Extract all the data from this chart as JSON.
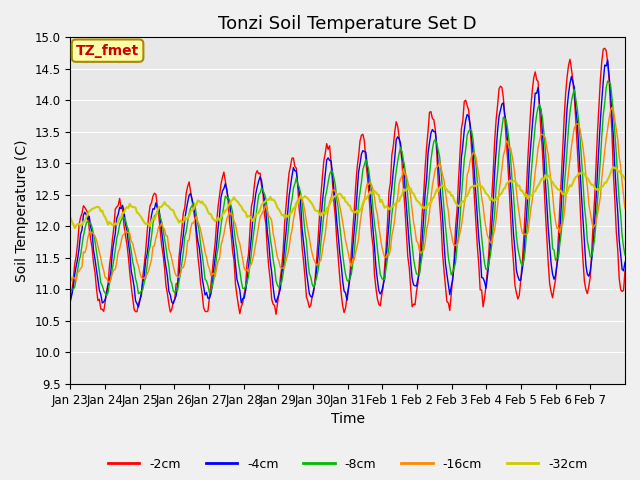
{
  "title": "Tonzi Soil Temperature Set D",
  "xlabel": "Time",
  "ylabel": "Soil Temperature (C)",
  "ylim": [
    9.5,
    15.0
  ],
  "yticks": [
    9.5,
    10.0,
    10.5,
    11.0,
    11.5,
    12.0,
    12.5,
    13.0,
    13.5,
    14.0,
    14.5,
    15.0
  ],
  "xtick_labels": [
    "Jan 23",
    "Jan 24",
    "Jan 25",
    "Jan 26",
    "Jan 27",
    "Jan 28",
    "Jan 29",
    "Jan 30",
    "Jan 31",
    "Feb 1",
    "Feb 2",
    "Feb 3",
    "Feb 4",
    "Feb 5",
    "Feb 6",
    "Feb 7"
  ],
  "series_colors": [
    "#ff0000",
    "#0000ff",
    "#00bb00",
    "#ff8800",
    "#cccc00"
  ],
  "series_labels": [
    "-2cm",
    "-4cm",
    "-8cm",
    "-16cm",
    "-32cm"
  ],
  "annotation_text": "TZ_fmet",
  "annotation_bg": "#ffffaa",
  "annotation_border": "#aa8800",
  "fig_bg": "#f0f0f0",
  "plot_bg": "#e8e8e8",
  "grid_color": "#ffffff",
  "title_fontsize": 13,
  "label_fontsize": 10,
  "tick_fontsize": 8.5,
  "n_days": 16
}
